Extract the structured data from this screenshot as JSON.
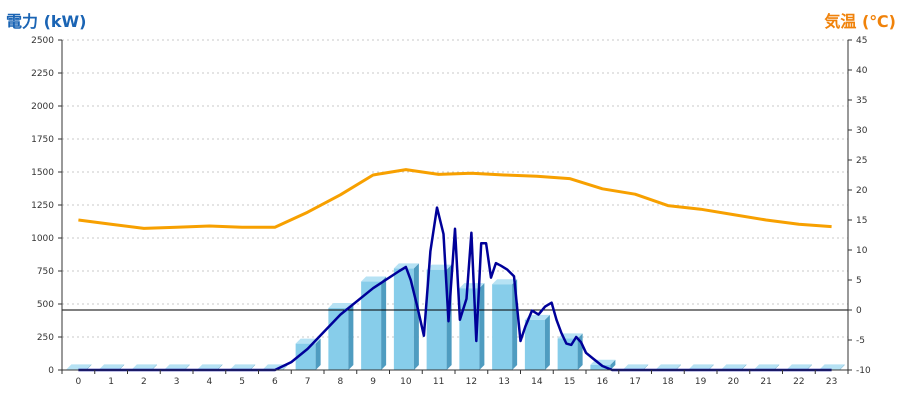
{
  "chart_data": {
    "type": "bar",
    "y_left_label": "電力 (kW)",
    "y_right_label": "気温 (℃)",
    "categories": [
      "0",
      "1",
      "2",
      "3",
      "4",
      "5",
      "6",
      "7",
      "8",
      "9",
      "10",
      "11",
      "12",
      "13",
      "14",
      "15",
      "16",
      "17",
      "18",
      "19",
      "20",
      "21",
      "22",
      "23"
    ],
    "ylim_left": [
      0,
      2500
    ],
    "ylim_right": [
      -10,
      45
    ],
    "y_left_ticks": [
      0,
      250,
      500,
      750,
      1000,
      1250,
      1500,
      1750,
      2000,
      2250,
      2500
    ],
    "y_right_ticks": [
      -10,
      -5,
      0,
      5,
      10,
      15,
      20,
      25,
      30,
      35,
      40,
      45
    ],
    "grid": true,
    "series": [
      {
        "kind": "bar",
        "axis": "left",
        "values": [
          5,
          5,
          5,
          5,
          5,
          5,
          5,
          200,
          470,
          670,
          770,
          760,
          620,
          650,
          380,
          240,
          40,
          5,
          5,
          5,
          5,
          5,
          5,
          5
        ]
      },
      {
        "kind": "line",
        "axis": "left",
        "color": "#000099",
        "x": [
          0,
          6,
          6.5,
          7,
          8,
          9,
          9.8,
          10,
          10.15,
          10.35,
          10.55,
          10.75,
          10.95,
          11.15,
          11.3,
          11.5,
          11.65,
          11.85,
          12.0,
          12.15,
          12.3,
          12.45,
          12.6,
          12.75,
          12.9,
          13.1,
          13.3,
          13.5,
          13.65,
          13.85,
          14.05,
          14.25,
          14.45,
          14.6,
          14.75,
          14.9,
          15.05,
          15.2,
          15.35,
          15.5,
          15.7,
          16.0,
          16.3,
          23
        ],
        "y": [
          0,
          0,
          60,
          160,
          420,
          620,
          750,
          780,
          680,
          480,
          260,
          900,
          1230,
          1030,
          370,
          1070,
          380,
          540,
          1040,
          220,
          960,
          960,
          700,
          810,
          790,
          760,
          710,
          220,
          330,
          450,
          420,
          480,
          510,
          380,
          280,
          200,
          190,
          250,
          210,
          130,
          90,
          30,
          0,
          0
        ]
      },
      {
        "kind": "line",
        "axis": "right",
        "color": "#f7a000",
        "values": [
          15.0,
          14.3,
          13.6,
          13.8,
          14.0,
          13.8,
          13.8,
          16.3,
          19.2,
          22.5,
          23.4,
          22.6,
          22.8,
          22.5,
          22.3,
          21.9,
          20.2,
          19.3,
          17.4,
          16.8,
          15.9,
          15.0,
          14.3,
          13.9
        ]
      }
    ]
  }
}
